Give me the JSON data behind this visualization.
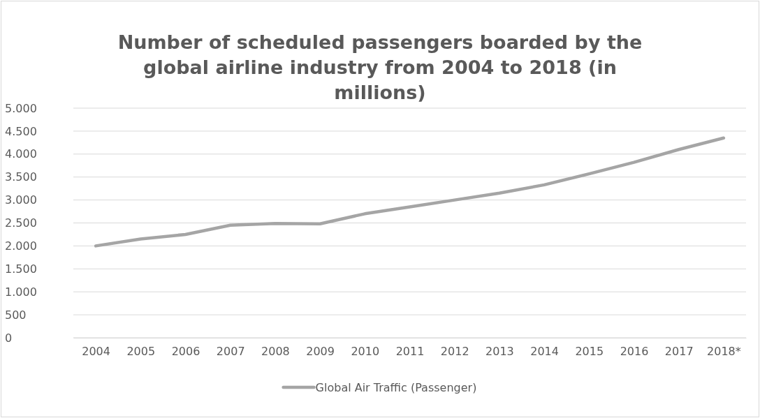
{
  "chart_data": {
    "type": "line",
    "title": "Number of scheduled passengers boarded by the global airline industry from 2004 to 2018 (in millions)",
    "categories": [
      "2004",
      "2005",
      "2006",
      "2007",
      "2008",
      "2009",
      "2010",
      "2011",
      "2012",
      "2013",
      "2014",
      "2015",
      "2016",
      "2017",
      "2018*"
    ],
    "series": [
      {
        "name": "Global Air Traffic (Passenger)",
        "color": "#a5a5a5",
        "values": [
          2000,
          2150,
          2250,
          2450,
          2490,
          2480,
          2700,
          2850,
          3000,
          3150,
          3330,
          3570,
          3820,
          4100,
          4350
        ]
      }
    ],
    "ylim": [
      0,
      5000
    ],
    "yticks": [
      0,
      500,
      {
        "value": 1000,
        "label": "1.000"
      },
      {
        "value": 1500,
        "label": "1.500"
      },
      {
        "value": 2000,
        "label": "2.000"
      },
      {
        "value": 2500,
        "label": "2.500"
      },
      {
        "value": 3000,
        "label": "3.000"
      },
      {
        "value": 3500,
        "label": "3.500"
      },
      {
        "value": 4000,
        "label": "4.000"
      },
      {
        "value": 4500,
        "label": "4.500"
      },
      {
        "value": 5000,
        "label": "5.000"
      }
    ],
    "grid": "y",
    "legend": "bottom",
    "marker": "none",
    "line_style": "solid"
  }
}
